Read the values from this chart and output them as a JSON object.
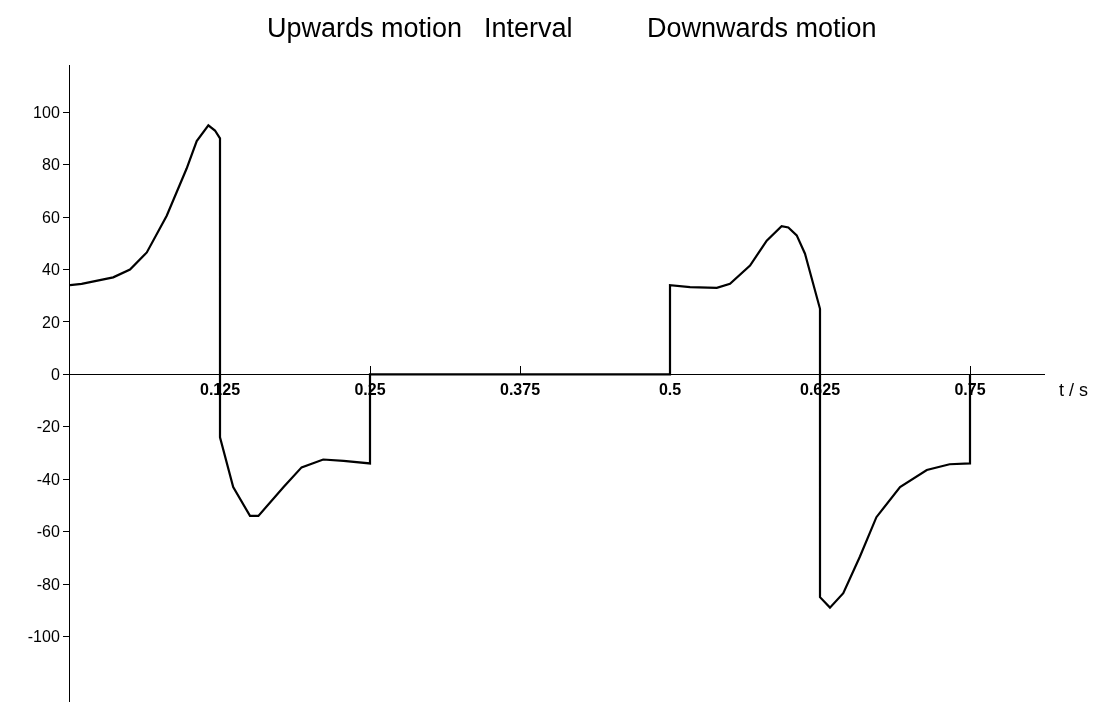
{
  "chart_data": {
    "type": "line",
    "annotations": [
      "Upwards motion",
      "Interval",
      "Downwards motion"
    ],
    "xlabel": "t / s",
    "xlim": [
      0,
      0.8125
    ],
    "ylim": [
      -125,
      118
    ],
    "xticks": [
      0.125,
      0.25,
      0.375,
      0.5,
      0.625,
      0.75
    ],
    "yticks": [
      -100,
      -80,
      -60,
      -40,
      -20,
      0,
      20,
      40,
      60,
      80,
      100
    ],
    "marker": "none",
    "line_style": "solid",
    "series": [
      {
        "color": "#000000",
        "x": [
          0,
          0.0097,
          0.036,
          0.05,
          0.064,
          0.0806,
          0.0972,
          0.1056,
          0.1153,
          0.1208,
          0.125,
          0.125,
          0.136,
          0.15,
          0.157,
          0.178,
          0.193,
          0.211,
          0.228,
          0.25,
          0.25,
          0.5,
          0.5,
          0.5167,
          0.539,
          0.55,
          0.5667,
          0.5806,
          0.593,
          0.5986,
          0.6056,
          0.6125,
          0.625,
          0.625,
          0.6333,
          0.6444,
          0.6583,
          0.672,
          0.6917,
          0.714,
          0.733,
          0.75,
          0.75
        ],
        "values": [
          34,
          34.5,
          37,
          40,
          46.5,
          60.5,
          78.5,
          89,
          95,
          93,
          90,
          -24,
          -43,
          -54,
          -54,
          -43,
          -35.5,
          -32.5,
          -33,
          -34,
          0,
          0,
          34,
          33.3,
          33,
          34.5,
          41.5,
          51,
          56.5,
          56,
          53,
          46,
          25,
          -85,
          -89,
          -83.5,
          -69.5,
          -54.5,
          -43,
          -36.5,
          -34.3,
          -34,
          0
        ]
      }
    ]
  }
}
